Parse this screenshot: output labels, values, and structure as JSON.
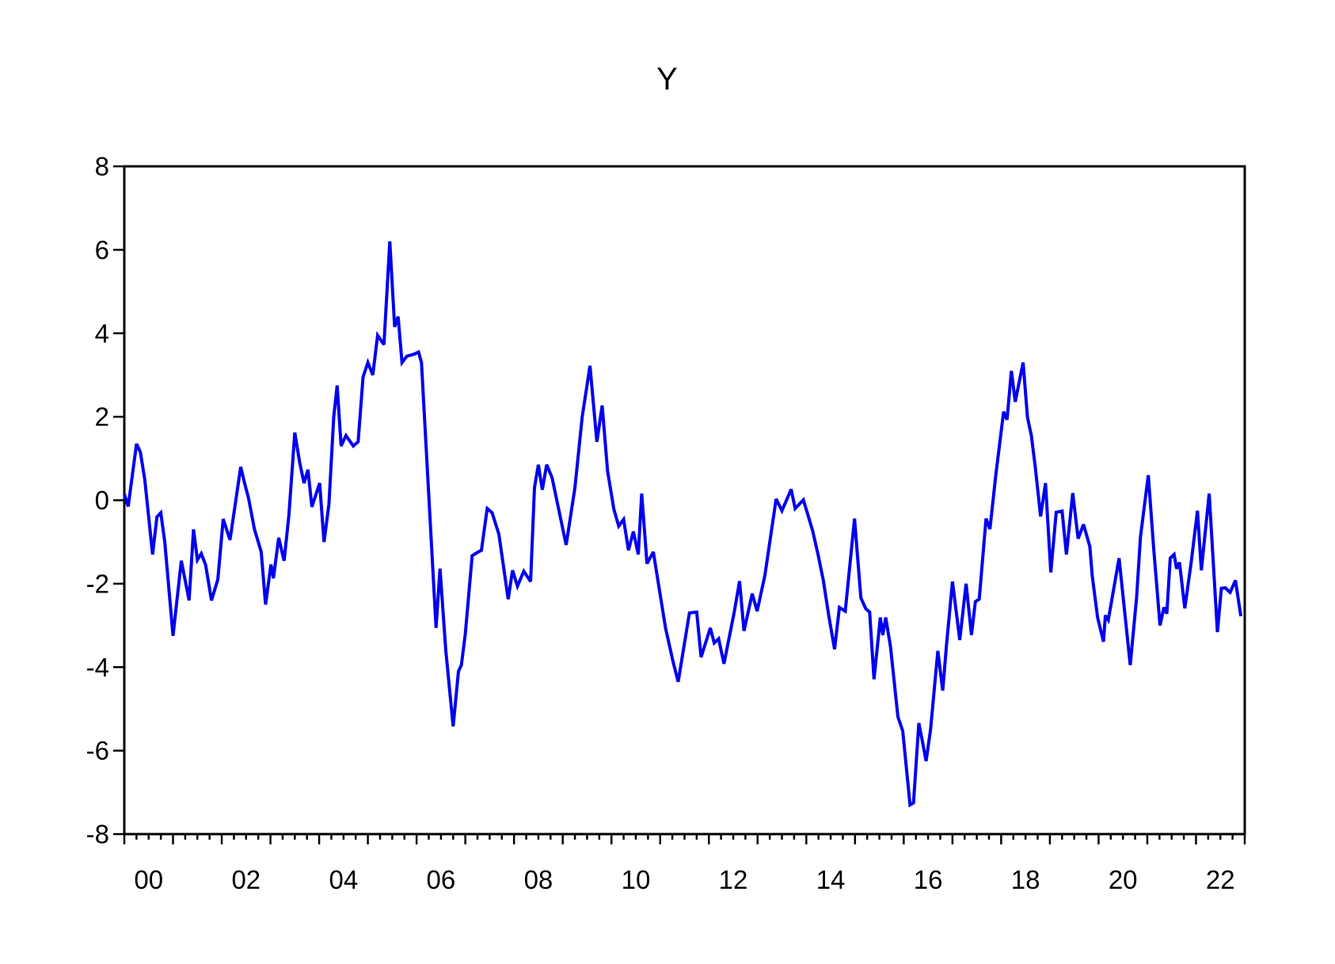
{
  "title": "Y",
  "chart_data": {
    "type": "line",
    "title": "Y",
    "grid": false,
    "legend": "none",
    "frame_color": "#000000",
    "background": "#ffffff",
    "x_axis": {
      "range": [
        2000,
        2023
      ],
      "unit": "year",
      "minor_tick_interval": 0.25,
      "major_tick_interval": 1,
      "labels": [
        {
          "text": "00",
          "t": 2000.5
        },
        {
          "text": "02",
          "t": 2002.5
        },
        {
          "text": "04",
          "t": 2004.5
        },
        {
          "text": "06",
          "t": 2006.5
        },
        {
          "text": "08",
          "t": 2008.5
        },
        {
          "text": "10",
          "t": 2010.5
        },
        {
          "text": "12",
          "t": 2012.5
        },
        {
          "text": "14",
          "t": 2014.5
        },
        {
          "text": "16",
          "t": 2016.5
        },
        {
          "text": "18",
          "t": 2018.5
        },
        {
          "text": "20",
          "t": 2020.5
        },
        {
          "text": "22",
          "t": 2022.5
        }
      ]
    },
    "y_axis": {
      "range": [
        -8,
        8
      ],
      "ticks": [
        8,
        6,
        4,
        2,
        0,
        -2,
        -4,
        -6,
        -8
      ]
    },
    "series": [
      {
        "name": "Y",
        "color": "#0000ee",
        "points": [
          [
            2000.0,
            0.15
          ],
          [
            2000.08,
            -0.15
          ],
          [
            2000.25,
            1.35
          ],
          [
            2000.33,
            1.15
          ],
          [
            2000.42,
            0.5
          ],
          [
            2000.58,
            -1.3
          ],
          [
            2000.67,
            -0.4
          ],
          [
            2000.75,
            -0.3
          ],
          [
            2000.83,
            -1.0
          ],
          [
            2001.0,
            -3.25
          ],
          [
            2001.17,
            -1.45
          ],
          [
            2001.33,
            -2.4
          ],
          [
            2001.42,
            -0.7
          ],
          [
            2001.5,
            -1.43
          ],
          [
            2001.58,
            -1.28
          ],
          [
            2001.67,
            -1.55
          ],
          [
            2001.79,
            -2.4
          ],
          [
            2001.92,
            -1.9
          ],
          [
            2002.03,
            -0.45
          ],
          [
            2002.17,
            -0.95
          ],
          [
            2002.39,
            0.8
          ],
          [
            2002.47,
            0.4
          ],
          [
            2002.55,
            0.05
          ],
          [
            2002.67,
            -0.69
          ],
          [
            2002.81,
            -1.24
          ],
          [
            2002.9,
            -2.5
          ],
          [
            2003.01,
            -1.54
          ],
          [
            2003.06,
            -1.87
          ],
          [
            2003.17,
            -0.9
          ],
          [
            2003.28,
            -1.45
          ],
          [
            2003.38,
            -0.35
          ],
          [
            2003.5,
            1.62
          ],
          [
            2003.6,
            0.9
          ],
          [
            2003.69,
            0.41
          ],
          [
            2003.77,
            0.73
          ],
          [
            2003.85,
            -0.16
          ],
          [
            2004.01,
            0.41
          ],
          [
            2004.1,
            -1.0
          ],
          [
            2004.2,
            -0.1
          ],
          [
            2004.3,
            2.0
          ],
          [
            2004.37,
            2.75
          ],
          [
            2004.45,
            1.3
          ],
          [
            2004.55,
            1.55
          ],
          [
            2004.7,
            1.3
          ],
          [
            2004.8,
            1.4
          ],
          [
            2004.9,
            2.95
          ],
          [
            2005.0,
            3.3
          ],
          [
            2005.1,
            3.0
          ],
          [
            2005.2,
            3.95
          ],
          [
            2005.33,
            3.73
          ],
          [
            2005.45,
            6.2
          ],
          [
            2005.55,
            4.15
          ],
          [
            2005.62,
            4.4
          ],
          [
            2005.7,
            3.3
          ],
          [
            2005.8,
            3.45
          ],
          [
            2005.95,
            3.5
          ],
          [
            2006.04,
            3.55
          ],
          [
            2006.1,
            3.3
          ],
          [
            2006.4,
            -3.06
          ],
          [
            2006.48,
            -1.64
          ],
          [
            2006.6,
            -3.6
          ],
          [
            2006.75,
            -5.42
          ],
          [
            2006.86,
            -4.1
          ],
          [
            2006.92,
            -3.95
          ],
          [
            2007.0,
            -3.19
          ],
          [
            2007.14,
            -1.33
          ],
          [
            2007.25,
            -1.25
          ],
          [
            2007.33,
            -1.2
          ],
          [
            2007.45,
            -0.2
          ],
          [
            2007.55,
            -0.3
          ],
          [
            2007.69,
            -0.82
          ],
          [
            2007.88,
            -2.37
          ],
          [
            2007.97,
            -1.68
          ],
          [
            2008.07,
            -2.06
          ],
          [
            2008.2,
            -1.7
          ],
          [
            2008.34,
            -1.95
          ],
          [
            2008.42,
            0.3
          ],
          [
            2008.5,
            0.85
          ],
          [
            2008.58,
            0.25
          ],
          [
            2008.67,
            0.85
          ],
          [
            2008.78,
            0.54
          ],
          [
            2009.07,
            -1.07
          ],
          [
            2009.25,
            0.3
          ],
          [
            2009.4,
            2.0
          ],
          [
            2009.56,
            3.22
          ],
          [
            2009.7,
            1.4
          ],
          [
            2009.81,
            2.27
          ],
          [
            2009.92,
            0.7
          ],
          [
            2010.05,
            -0.22
          ],
          [
            2010.15,
            -0.62
          ],
          [
            2010.25,
            -0.46
          ],
          [
            2010.35,
            -1.2
          ],
          [
            2010.45,
            -0.75
          ],
          [
            2010.55,
            -1.3
          ],
          [
            2010.62,
            0.16
          ],
          [
            2010.73,
            -1.52
          ],
          [
            2010.86,
            -1.24
          ],
          [
            2011.11,
            -3.06
          ],
          [
            2011.27,
            -3.89
          ],
          [
            2011.37,
            -4.35
          ],
          [
            2011.6,
            -2.7
          ],
          [
            2011.75,
            -2.68
          ],
          [
            2011.84,
            -3.76
          ],
          [
            2012.03,
            -3.06
          ],
          [
            2012.11,
            -3.42
          ],
          [
            2012.2,
            -3.32
          ],
          [
            2012.31,
            -3.92
          ],
          [
            2012.52,
            -2.68
          ],
          [
            2012.63,
            -1.94
          ],
          [
            2012.72,
            -3.13
          ],
          [
            2012.89,
            -2.24
          ],
          [
            2012.99,
            -2.66
          ],
          [
            2013.15,
            -1.8
          ],
          [
            2013.38,
            0.03
          ],
          [
            2013.5,
            -0.25
          ],
          [
            2013.69,
            0.26
          ],
          [
            2013.77,
            -0.2
          ],
          [
            2013.94,
            0.01
          ],
          [
            2014.13,
            -0.73
          ],
          [
            2014.24,
            -1.3
          ],
          [
            2014.35,
            -1.92
          ],
          [
            2014.46,
            -2.76
          ],
          [
            2014.58,
            -3.57
          ],
          [
            2014.68,
            -2.57
          ],
          [
            2014.8,
            -2.66
          ],
          [
            2014.99,
            -0.44
          ],
          [
            2015.12,
            -2.34
          ],
          [
            2015.22,
            -2.6
          ],
          [
            2015.3,
            -2.68
          ],
          [
            2015.39,
            -4.29
          ],
          [
            2015.52,
            -2.81
          ],
          [
            2015.57,
            -3.23
          ],
          [
            2015.63,
            -2.81
          ],
          [
            2015.73,
            -3.52
          ],
          [
            2015.88,
            -5.19
          ],
          [
            2015.98,
            -5.53
          ],
          [
            2016.13,
            -7.3
          ],
          [
            2016.2,
            -7.25
          ],
          [
            2016.31,
            -5.34
          ],
          [
            2016.37,
            -5.7
          ],
          [
            2016.46,
            -6.25
          ],
          [
            2016.55,
            -5.5
          ],
          [
            2016.7,
            -3.61
          ],
          [
            2016.8,
            -4.56
          ],
          [
            2016.88,
            -3.44
          ],
          [
            2017.0,
            -1.95
          ],
          [
            2017.15,
            -3.35
          ],
          [
            2017.28,
            -2.0
          ],
          [
            2017.39,
            -3.23
          ],
          [
            2017.47,
            -2.43
          ],
          [
            2017.55,
            -2.37
          ],
          [
            2017.69,
            -0.44
          ],
          [
            2017.77,
            -0.69
          ],
          [
            2017.89,
            0.6
          ],
          [
            2018.05,
            2.12
          ],
          [
            2018.12,
            1.93
          ],
          [
            2018.21,
            3.1
          ],
          [
            2018.29,
            2.36
          ],
          [
            2018.45,
            3.3
          ],
          [
            2018.54,
            1.99
          ],
          [
            2018.62,
            1.55
          ],
          [
            2018.7,
            0.79
          ],
          [
            2018.81,
            -0.39
          ],
          [
            2018.91,
            0.41
          ],
          [
            2019.02,
            -1.73
          ],
          [
            2019.13,
            -0.29
          ],
          [
            2019.25,
            -0.26
          ],
          [
            2019.34,
            -1.3
          ],
          [
            2019.47,
            0.17
          ],
          [
            2019.58,
            -0.92
          ],
          [
            2019.69,
            -0.58
          ],
          [
            2019.82,
            -1.11
          ],
          [
            2019.87,
            -1.81
          ],
          [
            2019.98,
            -2.81
          ],
          [
            2020.1,
            -3.39
          ],
          [
            2020.14,
            -2.76
          ],
          [
            2020.2,
            -2.87
          ],
          [
            2020.42,
            -1.39
          ],
          [
            2020.65,
            -3.95
          ],
          [
            2020.78,
            -2.34
          ],
          [
            2020.86,
            -0.88
          ],
          [
            2021.02,
            0.6
          ],
          [
            2021.13,
            -1.15
          ],
          [
            2021.26,
            -3.0
          ],
          [
            2021.34,
            -2.57
          ],
          [
            2021.4,
            -2.72
          ],
          [
            2021.47,
            -1.39
          ],
          [
            2021.55,
            -1.3
          ],
          [
            2021.6,
            -1.64
          ],
          [
            2021.66,
            -1.49
          ],
          [
            2021.77,
            -2.59
          ],
          [
            2021.9,
            -1.5
          ],
          [
            2022.03,
            -0.25
          ],
          [
            2022.11,
            -1.68
          ],
          [
            2022.27,
            0.16
          ],
          [
            2022.44,
            -3.16
          ],
          [
            2022.52,
            -2.11
          ],
          [
            2022.6,
            -2.1
          ],
          [
            2022.7,
            -2.21
          ],
          [
            2022.81,
            -1.92
          ],
          [
            2022.92,
            -2.78
          ]
        ]
      }
    ]
  }
}
